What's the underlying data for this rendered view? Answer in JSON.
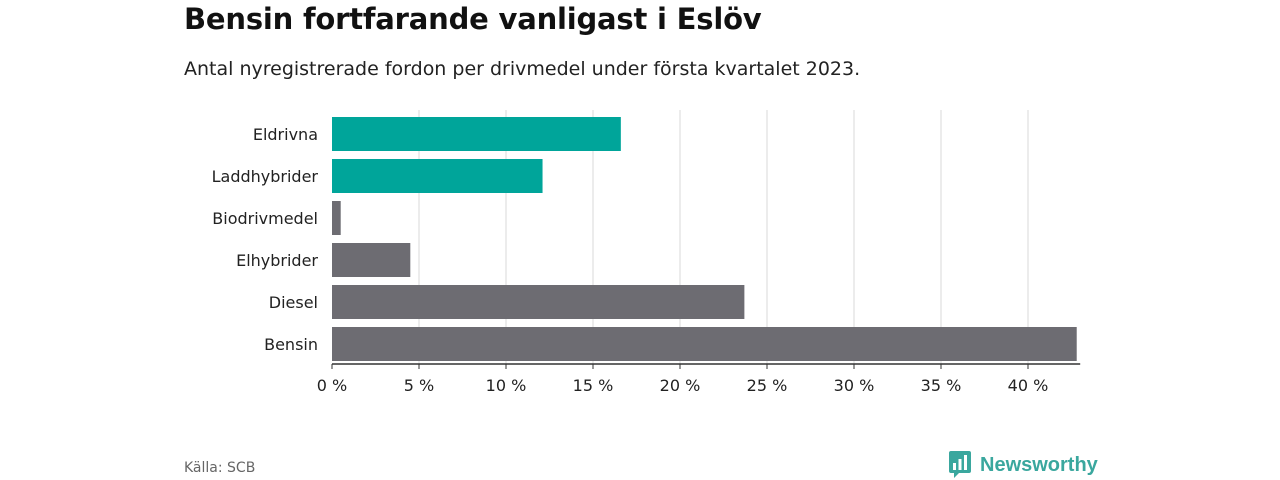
{
  "header": {
    "title": "Bensin fortfarande vanligast i Eslöv",
    "subtitle": "Antal nyregistrerade fordon per drivmedel under första kvartalet 2023."
  },
  "footer": {
    "source": "Källa: SCB",
    "brand": "Newsworthy"
  },
  "colors": {
    "highlight": "#00a59a",
    "default": "#6d6c72",
    "brand": "#3aa79e"
  },
  "chart_data": {
    "type": "bar",
    "orientation": "horizontal",
    "categories": [
      "Eldrivna",
      "Laddhybrider",
      "Biodrivmedel",
      "Elhybrider",
      "Diesel",
      "Bensin"
    ],
    "values": [
      16.6,
      12.1,
      0.5,
      4.5,
      23.7,
      42.8
    ],
    "highlighted": [
      true,
      true,
      false,
      false,
      false,
      false
    ],
    "xlim": [
      0,
      43
    ],
    "xticks": [
      0,
      5,
      10,
      15,
      20,
      25,
      30,
      35,
      40
    ],
    "tick_labels": [
      "0 %",
      "5 %",
      "10 %",
      "15 %",
      "20 %",
      "25 %",
      "30 %",
      "35 %",
      "40 %"
    ],
    "grid": true,
    "legend": "none"
  }
}
